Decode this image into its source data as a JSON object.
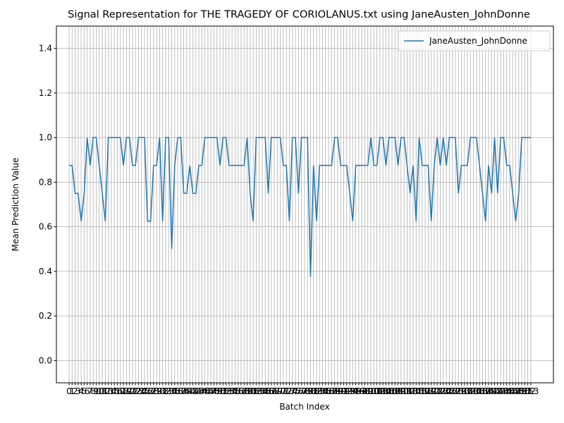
{
  "chart_data": {
    "type": "line",
    "title": "Signal Representation for THE TRAGEDY OF CORIOLANUS.txt using JaneAusten_JohnDonne",
    "x_label": "Batch Index",
    "y_label": "Mean Prediction Value",
    "x": [
      0,
      1,
      2,
      3,
      4,
      5,
      6,
      7,
      8,
      9,
      10,
      11,
      12,
      13,
      14,
      15,
      16,
      17,
      18,
      19,
      20,
      21,
      22,
      23,
      24,
      25,
      26,
      27,
      28,
      29,
      30,
      31,
      32,
      33,
      34,
      35,
      36,
      37,
      38,
      39,
      40,
      41,
      42,
      43,
      44,
      45,
      46,
      47,
      48,
      49,
      50,
      51,
      52,
      53,
      54,
      55,
      56,
      57,
      58,
      59,
      60,
      61,
      62,
      63,
      64,
      65,
      66,
      67,
      68,
      69,
      70,
      71,
      72,
      73,
      74,
      75,
      76,
      77,
      78,
      79,
      80,
      81,
      82,
      83,
      84,
      85,
      86,
      87,
      88,
      89,
      90,
      91,
      92,
      93,
      94,
      95,
      96,
      97,
      98,
      99,
      100,
      101,
      102,
      103,
      104,
      105,
      106,
      107,
      108,
      109,
      110,
      111,
      112,
      113,
      114,
      115,
      116,
      117,
      118,
      119,
      120,
      121,
      122,
      123,
      124,
      125,
      126,
      127,
      128,
      129,
      130,
      131,
      132,
      133,
      134,
      135,
      136,
      137,
      138,
      139,
      140,
      141,
      142,
      143,
      144,
      145,
      146,
      147,
      148,
      149,
      150,
      151,
      152,
      153
    ],
    "series": [
      {
        "name": "JaneAusten_JohnDonne",
        "color": "#1f77b4",
        "values": [
          0.875,
          0.875,
          0.75,
          0.75,
          0.625,
          0.75,
          1,
          0.875,
          1,
          1,
          0.875,
          0.75,
          0.625,
          1,
          1,
          1,
          1,
          1,
          0.875,
          1,
          1,
          0.875,
          0.875,
          1,
          1,
          1,
          0.625,
          0.625,
          0.875,
          0.875,
          1,
          0.625,
          1,
          1,
          0.5,
          0.875,
          1,
          1,
          0.75,
          0.75,
          0.875,
          0.75,
          0.75,
          0.875,
          0.875,
          1,
          1,
          1,
          1,
          1,
          0.875,
          1,
          1,
          0.875,
          0.875,
          0.875,
          0.875,
          0.875,
          0.875,
          1,
          0.75,
          0.625,
          1,
          1,
          1,
          1,
          0.75,
          1,
          1,
          1,
          1,
          0.875,
          0.875,
          0.625,
          1,
          1,
          0.75,
          1,
          1,
          1,
          0.375,
          0.875,
          0.625,
          0.875,
          0.875,
          0.875,
          0.875,
          0.875,
          1,
          1,
          0.875,
          0.875,
          0.875,
          0.75,
          0.625,
          0.875,
          0.875,
          0.875,
          0.875,
          0.875,
          1,
          0.875,
          0.875,
          1,
          1,
          0.875,
          1,
          1,
          1,
          0.875,
          1,
          1,
          0.875,
          0.75,
          0.875,
          0.625,
          1,
          0.875,
          0.875,
          0.875,
          0.625,
          0.875,
          1,
          0.875,
          1,
          0.875,
          1,
          1,
          1,
          0.75,
          0.875,
          0.875,
          0.875,
          1,
          1,
          1,
          0.875,
          0.75,
          0.625,
          0.875,
          0.75,
          1,
          0.75,
          1,
          1,
          0.875,
          0.875,
          0.75,
          0.625,
          0.75,
          1,
          1,
          1,
          1
        ]
      }
    ],
    "xlim": [
      -4.2,
      160.5
    ],
    "ylim": [
      -0.1,
      1.5
    ],
    "xticks": [
      0,
      1,
      2,
      3,
      4,
      5,
      6,
      7,
      8,
      9,
      10,
      11,
      12,
      13,
      14,
      15,
      16,
      17,
      18,
      19,
      20,
      21,
      22,
      23,
      24,
      25,
      26,
      27,
      28,
      29,
      30,
      31,
      32,
      33,
      34,
      35,
      36,
      37,
      38,
      39,
      40,
      41,
      42,
      43,
      44,
      45,
      46,
      47,
      48,
      49,
      50,
      51,
      52,
      53,
      54,
      55,
      56,
      57,
      58,
      59,
      60,
      61,
      62,
      63,
      64,
      65,
      66,
      67,
      68,
      69,
      70,
      71,
      72,
      73,
      74,
      75,
      76,
      77,
      78,
      79,
      80,
      81,
      82,
      83,
      84,
      85,
      86,
      87,
      88,
      89,
      90,
      91,
      92,
      93,
      94,
      95,
      96,
      97,
      98,
      99,
      100,
      101,
      102,
      103,
      104,
      105,
      106,
      107,
      108,
      109,
      110,
      111,
      112,
      113,
      114,
      115,
      116,
      117,
      118,
      119,
      120,
      121,
      122,
      123,
      124,
      125,
      126,
      127,
      128,
      129,
      130,
      131,
      132,
      133,
      134,
      135,
      136,
      137,
      138,
      139,
      140,
      141,
      142,
      143,
      144,
      145,
      146,
      147,
      148,
      149,
      150,
      151,
      152,
      153
    ],
    "yticks": [
      {
        "value": 0,
        "label": "0.0"
      },
      {
        "value": 0.2,
        "label": "0.2"
      },
      {
        "value": 0.4,
        "label": "0.4"
      },
      {
        "value": 0.6,
        "label": "0.6"
      },
      {
        "value": 0.8,
        "label": "0.8"
      },
      {
        "value": 1,
        "label": "1.0"
      },
      {
        "value": 1.2,
        "label": "1.2"
      },
      {
        "value": 1.4,
        "label": "1.4"
      }
    ],
    "grid": true,
    "legend": "upper right"
  }
}
